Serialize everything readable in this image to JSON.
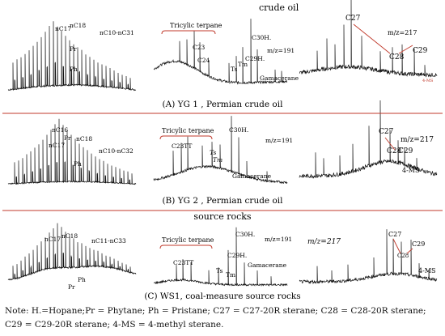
{
  "headers": {
    "crude_oil": "crude oil",
    "source_rocks": "source rocks"
  },
  "captions": {
    "a": "(A)  YG 1 , Permian crude oil",
    "b": "(B)  YG 2 , Permian crude oil",
    "c": "(C)  WS1, coal-measure source rocks"
  },
  "row_a": {
    "left_labels": {
      "nc17": "nC17",
      "nc18": "nC18",
      "pr": "Pr",
      "ph": "Ph",
      "range": "nC10-nC31"
    },
    "mid_labels": {
      "tricyclic": "Tricylic terpane",
      "c23": "C23",
      "c24": "C24",
      "ts": "Ts",
      "tm": "Tm",
      "c29h": "C29H.",
      "c30h": "C30H.",
      "mz": "m/z=191",
      "gam": "Gamacerane"
    },
    "right_labels": {
      "c27": "C27",
      "c28": "C28",
      "c29": "C29",
      "mz": "m/z=217",
      "ms": "4-MS"
    }
  },
  "row_b": {
    "left_labels": {
      "nc16": "nC16",
      "nc17": "nC17",
      "pr": "Pr",
      "nc18": "nC18",
      "ph": "Ph",
      "range": "nC10-nC32"
    },
    "mid_labels": {
      "tricyclic": "Tricylic terpane",
      "c23tt": "C23TT",
      "ts": "Ts",
      "tm": "Tm",
      "c30h": "C30H.",
      "mz": "m/z=191",
      "gam": "Gamacerane"
    },
    "right_labels": {
      "c27": "C27",
      "c28": "C28",
      "c29": "C29",
      "mz": "m/z=217",
      "ms": "4-MS"
    }
  },
  "row_c": {
    "left_labels": {
      "nc17": "nC17",
      "nc18": "nC18",
      "range": "nC11-nC33",
      "ph": "Ph",
      "pr": "Pr"
    },
    "mid_labels": {
      "tricyclic": "Tricylic terpane",
      "c23tt": "C23TT",
      "ts": "Ts",
      "tm": "Tm",
      "c29h": "C29H.",
      "c30h": "C30H.",
      "mz": "m/z=191",
      "gam": "Gamacerane"
    },
    "right_labels": {
      "c27": "C27",
      "c28": "C28",
      "c29": "C29",
      "mz": "m/z=217",
      "ms": "4-MS"
    }
  },
  "note": {
    "text": "Note: H.=Hopane;Pr = Phytane; Ph = Pristane; C27 = C27-20R sterane; C28 = C28-20R sterane; C29 = C29-20R sterane; 4-MS = 4-methyl sterane."
  },
  "colors": {
    "separator": "#c0392b",
    "trace": "#111111",
    "annotation": "#c0392b"
  }
}
